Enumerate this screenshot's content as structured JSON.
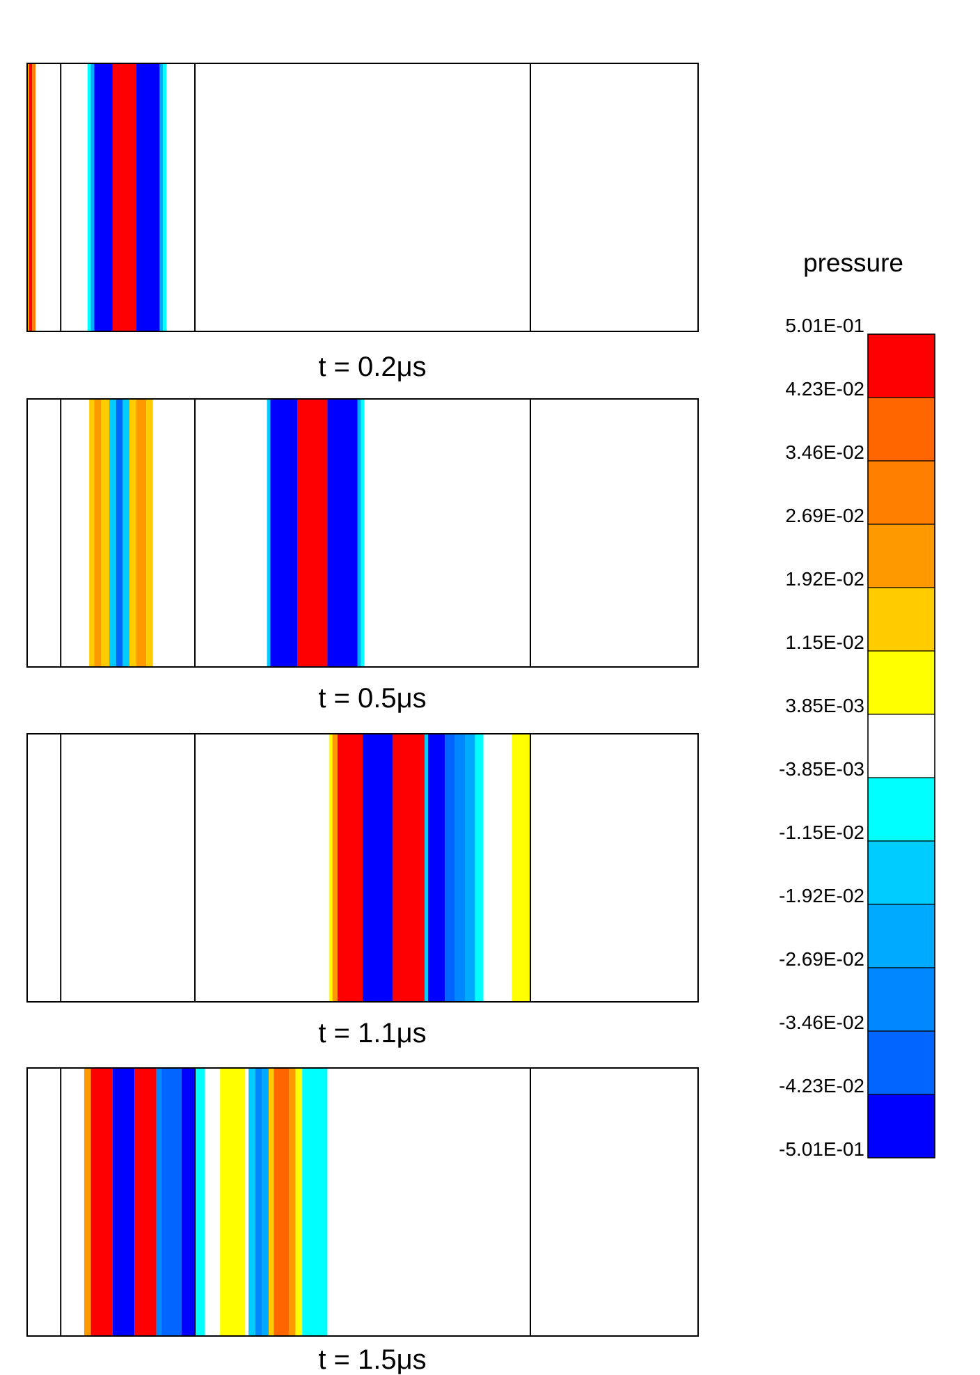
{
  "chart_data": {
    "type": "heatmap",
    "legend": {
      "title": "pressure",
      "placement": "right",
      "levels": [
        "5.01E-01",
        "4.23E-02",
        "3.46E-02",
        "2.69E-02",
        "1.92E-02",
        "1.15E-02",
        "3.85E-03",
        "-3.85E-03",
        "-1.15E-02",
        "-1.92E-02",
        "-2.69E-02",
        "-3.46E-02",
        "-4.23E-02",
        "-5.01E-01"
      ],
      "colors": [
        "#ff0000",
        "#ff6600",
        "#ff8000",
        "#ff9900",
        "#ffcc00",
        "#ffff00",
        "#ffffff",
        "#00ffff",
        "#00ccff",
        "#00aaff",
        "#0088ff",
        "#0066ff",
        "#0000ff"
      ]
    },
    "domain": {
      "x_range": [
        0,
        20
      ],
      "interfaces": [
        1,
        5,
        15
      ]
    },
    "panels": [
      {
        "caption": "t = 0.2μs",
        "bands": [
          {
            "x0": 0.0,
            "x1": 0.05,
            "color": "#ffcc00"
          },
          {
            "x0": 0.05,
            "x1": 0.15,
            "color": "#ff0000"
          },
          {
            "x0": 0.15,
            "x1": 0.25,
            "color": "#ff8000"
          },
          {
            "x0": 1.8,
            "x1": 1.9,
            "color": "#00ffff"
          },
          {
            "x0": 1.9,
            "x1": 2.0,
            "color": "#00aaff"
          },
          {
            "x0": 2.0,
            "x1": 2.55,
            "color": "#0000ff"
          },
          {
            "x0": 2.55,
            "x1": 3.25,
            "color": "#ff0000"
          },
          {
            "x0": 3.25,
            "x1": 3.95,
            "color": "#0000ff"
          },
          {
            "x0": 3.95,
            "x1": 4.05,
            "color": "#00aaff"
          },
          {
            "x0": 4.05,
            "x1": 4.15,
            "color": "#00ffff"
          }
        ]
      },
      {
        "caption": "t = 0.5μs",
        "bands": [
          {
            "x0": 1.85,
            "x1": 2.0,
            "color": "#ffcc00"
          },
          {
            "x0": 2.0,
            "x1": 2.2,
            "color": "#ff9900"
          },
          {
            "x0": 2.2,
            "x1": 2.45,
            "color": "#ffcc00"
          },
          {
            "x0": 2.45,
            "x1": 2.65,
            "color": "#00ccff"
          },
          {
            "x0": 2.65,
            "x1": 2.85,
            "color": "#0066ff"
          },
          {
            "x0": 2.85,
            "x1": 3.05,
            "color": "#00ccff"
          },
          {
            "x0": 3.05,
            "x1": 3.25,
            "color": "#ffcc00"
          },
          {
            "x0": 3.25,
            "x1": 3.55,
            "color": "#ff9900"
          },
          {
            "x0": 3.55,
            "x1": 3.75,
            "color": "#ffcc00"
          },
          {
            "x0": 7.15,
            "x1": 7.25,
            "color": "#00ccff"
          },
          {
            "x0": 7.25,
            "x1": 8.05,
            "color": "#0000ff"
          },
          {
            "x0": 8.05,
            "x1": 8.95,
            "color": "#ff0000"
          },
          {
            "x0": 8.95,
            "x1": 9.85,
            "color": "#0000ff"
          },
          {
            "x0": 9.85,
            "x1": 9.95,
            "color": "#00aaff"
          },
          {
            "x0": 9.95,
            "x1": 10.05,
            "color": "#00ffff"
          }
        ]
      },
      {
        "caption": "t = 1.1μs",
        "bands": [
          {
            "x0": 9.0,
            "x1": 9.1,
            "color": "#ffff00"
          },
          {
            "x0": 9.1,
            "x1": 9.25,
            "color": "#ff9900"
          },
          {
            "x0": 9.25,
            "x1": 10.0,
            "color": "#ff0000"
          },
          {
            "x0": 10.0,
            "x1": 10.9,
            "color": "#0000ff"
          },
          {
            "x0": 10.9,
            "x1": 11.85,
            "color": "#ff0000"
          },
          {
            "x0": 11.85,
            "x1": 11.95,
            "color": "#00ccff"
          },
          {
            "x0": 11.95,
            "x1": 12.45,
            "color": "#0000ff"
          },
          {
            "x0": 12.45,
            "x1": 12.75,
            "color": "#0066ff"
          },
          {
            "x0": 12.75,
            "x1": 13.05,
            "color": "#0088ff"
          },
          {
            "x0": 13.05,
            "x1": 13.35,
            "color": "#00aaff"
          },
          {
            "x0": 13.35,
            "x1": 13.6,
            "color": "#00ffff"
          },
          {
            "x0": 14.45,
            "x1": 15.0,
            "color": "#ffff00"
          }
        ]
      },
      {
        "caption": "t = 1.5μs",
        "bands": [
          {
            "x0": 1.7,
            "x1": 1.9,
            "color": "#ff9900"
          },
          {
            "x0": 1.9,
            "x1": 2.55,
            "color": "#ff0000"
          },
          {
            "x0": 2.55,
            "x1": 3.2,
            "color": "#0000ff"
          },
          {
            "x0": 3.2,
            "x1": 3.85,
            "color": "#ff0000"
          },
          {
            "x0": 3.85,
            "x1": 4.0,
            "color": "#0088ff"
          },
          {
            "x0": 4.0,
            "x1": 4.6,
            "color": "#0066ff"
          },
          {
            "x0": 4.6,
            "x1": 5.0,
            "color": "#0000ff"
          },
          {
            "x0": 5.0,
            "x1": 5.3,
            "color": "#00ffff"
          },
          {
            "x0": 5.75,
            "x1": 6.5,
            "color": "#ffff00"
          },
          {
            "x0": 6.6,
            "x1": 6.8,
            "color": "#00ccff"
          },
          {
            "x0": 6.8,
            "x1": 7.0,
            "color": "#0088ff"
          },
          {
            "x0": 7.0,
            "x1": 7.2,
            "color": "#00aaff"
          },
          {
            "x0": 7.2,
            "x1": 7.35,
            "color": "#ffcc00"
          },
          {
            "x0": 7.35,
            "x1": 7.8,
            "color": "#ff6600"
          },
          {
            "x0": 7.8,
            "x1": 8.0,
            "color": "#ff9900"
          },
          {
            "x0": 8.0,
            "x1": 8.2,
            "color": "#ffff00"
          },
          {
            "x0": 8.2,
            "x1": 8.95,
            "color": "#00ffff"
          }
        ]
      }
    ]
  }
}
